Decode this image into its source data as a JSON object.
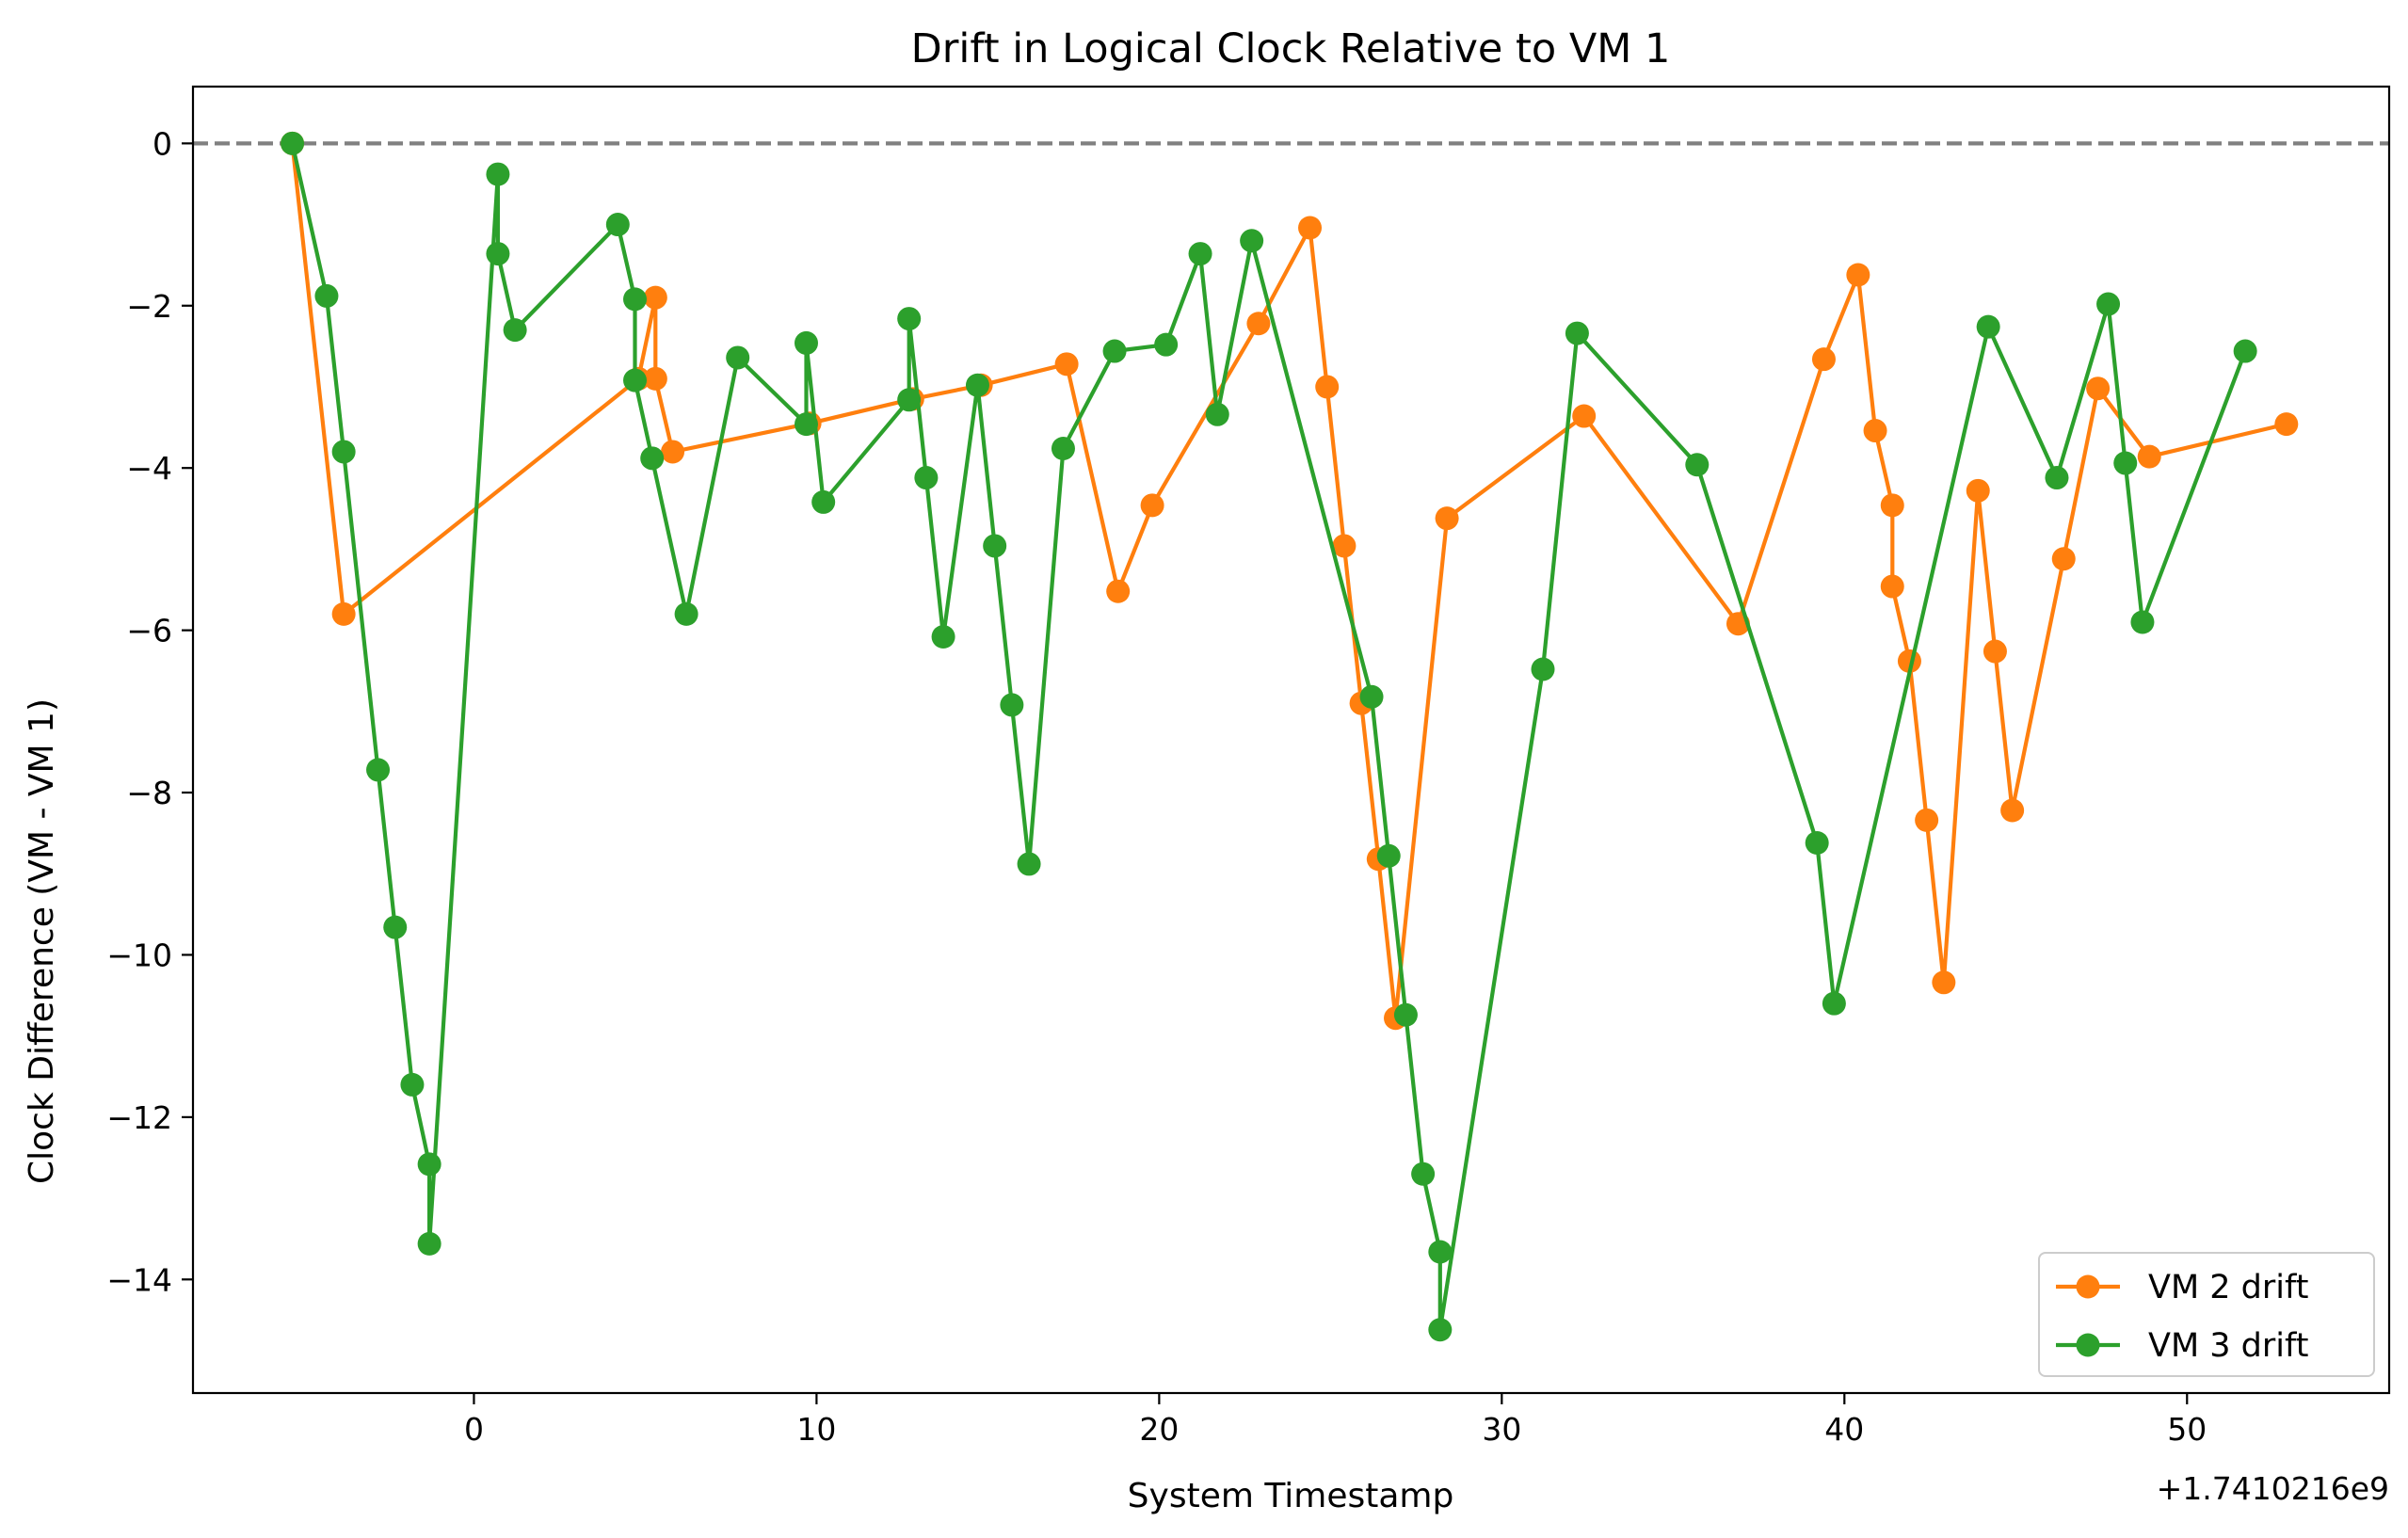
{
  "chart_data": {
    "type": "line",
    "title": "Drift in Logical Clock Relative to VM 1",
    "xlabel": "System Timestamp",
    "ylabel": "Clock Difference (VM - VM 1)",
    "x_offset_label": "+1.7410216e9",
    "xlim": [
      -8.2,
      55.9
    ],
    "ylim": [
      -15.4,
      0.7
    ],
    "x_ticks": [
      0,
      10,
      20,
      30,
      40,
      50
    ],
    "y_ticks": [
      0,
      -2,
      -4,
      -6,
      -8,
      -10,
      -12,
      -14
    ],
    "x_tick_labels": [
      "0",
      "10",
      "20",
      "30",
      "40",
      "50"
    ],
    "y_tick_labels": [
      "0",
      "−2",
      "−4",
      "−6",
      "−8",
      "−10",
      "−12",
      "−14"
    ],
    "reference_line": {
      "y": 0,
      "style": "dashed",
      "color": "#808080"
    },
    "grid": false,
    "legend_position": "lower-right",
    "series": [
      {
        "name": "VM 2 drift",
        "color": "#ff7f0e",
        "points": [
          [
            -5.3,
            0
          ],
          [
            -3.8,
            -5.8
          ],
          [
            4.8,
            -2.9
          ],
          [
            5.3,
            -1.9
          ],
          [
            5.3,
            -2.9
          ],
          [
            5.8,
            -3.8
          ],
          [
            9.8,
            -3.45
          ],
          [
            12.8,
            -3.15
          ],
          [
            14.8,
            -2.98
          ],
          [
            17.3,
            -2.72
          ],
          [
            18.8,
            -5.52
          ],
          [
            19.8,
            -4.46
          ],
          [
            22.9,
            -2.22
          ],
          [
            24.4,
            -1.04
          ],
          [
            24.9,
            -3.0
          ],
          [
            25.4,
            -4.96
          ],
          [
            25.9,
            -6.9
          ],
          [
            26.4,
            -8.82
          ],
          [
            26.9,
            -10.78
          ],
          [
            28.4,
            -4.62
          ],
          [
            32.4,
            -3.36
          ],
          [
            36.9,
            -5.92
          ],
          [
            39.4,
            -2.66
          ],
          [
            40.4,
            -1.62
          ],
          [
            40.9,
            -3.54
          ],
          [
            41.4,
            -4.46
          ],
          [
            41.4,
            -5.46
          ],
          [
            41.9,
            -6.38
          ],
          [
            42.4,
            -8.34
          ],
          [
            42.9,
            -10.34
          ],
          [
            43.9,
            -4.28
          ],
          [
            44.4,
            -6.26
          ],
          [
            44.9,
            -8.22
          ],
          [
            46.4,
            -5.12
          ],
          [
            47.4,
            -3.02
          ],
          [
            48.9,
            -3.86
          ],
          [
            52.9,
            -3.46
          ]
        ]
      },
      {
        "name": "VM 3 drift",
        "color": "#2ca02c",
        "points": [
          [
            -5.3,
            0
          ],
          [
            -4.3,
            -1.88
          ],
          [
            -3.8,
            -3.8
          ],
          [
            -2.8,
            -7.72
          ],
          [
            -2.3,
            -9.66
          ],
          [
            -1.8,
            -11.6
          ],
          [
            -1.3,
            -12.58
          ],
          [
            -1.3,
            -13.56
          ],
          [
            0.7,
            -0.38
          ],
          [
            0.7,
            -1.36
          ],
          [
            1.2,
            -2.3
          ],
          [
            4.2,
            -1.0
          ],
          [
            4.7,
            -1.92
          ],
          [
            4.7,
            -2.92
          ],
          [
            5.2,
            -3.88
          ],
          [
            6.2,
            -5.8
          ],
          [
            7.7,
            -2.64
          ],
          [
            9.7,
            -3.46
          ],
          [
            9.7,
            -2.46
          ],
          [
            10.2,
            -4.42
          ],
          [
            12.7,
            -3.16
          ],
          [
            12.7,
            -2.16
          ],
          [
            13.2,
            -4.12
          ],
          [
            13.7,
            -6.08
          ],
          [
            14.7,
            -2.98
          ],
          [
            15.2,
            -4.96
          ],
          [
            15.7,
            -6.92
          ],
          [
            16.2,
            -8.88
          ],
          [
            17.2,
            -3.76
          ],
          [
            18.7,
            -2.56
          ],
          [
            20.2,
            -2.48
          ],
          [
            21.2,
            -1.36
          ],
          [
            21.7,
            -3.34
          ],
          [
            22.7,
            -1.2
          ],
          [
            26.2,
            -6.82
          ],
          [
            26.7,
            -8.78
          ],
          [
            27.2,
            -10.74
          ],
          [
            27.7,
            -12.7
          ],
          [
            28.2,
            -13.66
          ],
          [
            28.2,
            -14.62
          ],
          [
            31.2,
            -6.48
          ],
          [
            32.2,
            -2.34
          ],
          [
            35.7,
            -3.96
          ],
          [
            39.2,
            -8.62
          ],
          [
            39.7,
            -10.6
          ],
          [
            44.2,
            -2.26
          ],
          [
            46.2,
            -4.12
          ],
          [
            47.7,
            -1.98
          ],
          [
            48.2,
            -3.94
          ],
          [
            48.7,
            -5.9
          ],
          [
            51.7,
            -2.56
          ]
        ]
      }
    ]
  }
}
